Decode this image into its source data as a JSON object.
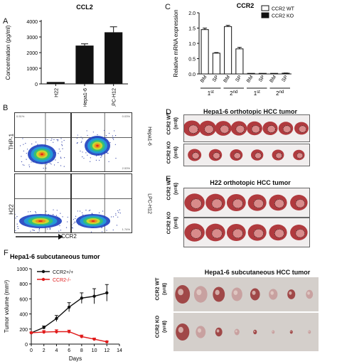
{
  "panel_labels": {
    "a": "A",
    "b": "B",
    "c": "C",
    "d": "D",
    "e": "E",
    "f": "F"
  },
  "colors": {
    "bar_black": "#111111",
    "line_black": "#111111",
    "line_red": "#e01b1b",
    "tissue": "#b03a3e",
    "tissue_light": "#d98a8a"
  },
  "chart_data": [
    {
      "panel": "A",
      "type": "bar",
      "title": "CCL2",
      "ylabel": "Concentration (pg/ml)",
      "ylim": [
        0,
        4000
      ],
      "yticks": [
        0,
        1000,
        2000,
        3000,
        4000
      ],
      "categories": [
        "H22",
        "Hepa1-6",
        "LPC-H12"
      ],
      "values": [
        120,
        2450,
        3300
      ],
      "errors": [
        0,
        110,
        350
      ],
      "grid": false
    },
    {
      "panel": "C",
      "type": "bar",
      "title": "CCR2",
      "ylabel": "Relative mRNA expression",
      "ylim": [
        0,
        2.0
      ],
      "yticks": [
        0.0,
        0.5,
        1.0,
        1.5,
        2.0
      ],
      "categories": [
        "BM",
        "SP",
        "BM",
        "SP",
        "BM",
        "SP",
        "BM",
        "SP"
      ],
      "groups": [
        {
          "label": "1st",
          "sup": "st",
          "base": "1"
        },
        {
          "label": "2nd",
          "sup": "nd",
          "base": "2"
        },
        {
          "label": "1st",
          "sup": "st",
          "base": "1"
        },
        {
          "label": "2nd",
          "sup": "nd",
          "base": "2"
        }
      ],
      "series": [
        {
          "name": "CCR2 WT",
          "fill": "#ffffff",
          "values": [
            1.45,
            0.68,
            1.55,
            0.82,
            null,
            null,
            null,
            null
          ],
          "errors": [
            0.05,
            0.02,
            0.04,
            0.05,
            0,
            0,
            0,
            0
          ]
        },
        {
          "name": "CCR2 KO",
          "fill": "#111111",
          "values": [
            null,
            null,
            null,
            null,
            0.0,
            0.0,
            0.0,
            0.02
          ],
          "errors": [
            0,
            0,
            0,
            0,
            0,
            0,
            0,
            0.01
          ]
        }
      ],
      "legend_position": "top-right",
      "grid": false
    },
    {
      "panel": "F",
      "type": "line",
      "title": "Hepa1-6 subcutaneous tumor",
      "xlabel": "Days",
      "ylabel": "Tumor volume (mm³)",
      "xlim": [
        0,
        14
      ],
      "ylim": [
        0,
        1000
      ],
      "xticks": [
        0,
        2,
        4,
        6,
        8,
        10,
        12,
        14
      ],
      "yticks": [
        0,
        200,
        400,
        600,
        800,
        1000
      ],
      "x": [
        0,
        2,
        4,
        6,
        8,
        10,
        12
      ],
      "series": [
        {
          "name": "CCR2+/+",
          "color": "#111111",
          "values": [
            150,
            220,
            340,
            490,
            610,
            635,
            680
          ],
          "errors": [
            10,
            20,
            40,
            60,
            70,
            100,
            110
          ]
        },
        {
          "name": "CCR2-/-",
          "color": "#e01b1b",
          "values": [
            150,
            160,
            165,
            165,
            100,
            65,
            30
          ],
          "errors": [
            10,
            20,
            25,
            20,
            20,
            15,
            10
          ]
        }
      ],
      "legend_position": "top-left",
      "grid": false
    }
  ],
  "flow": {
    "row_labels": [
      "THP-1",
      "H22"
    ],
    "col_labels": [
      "Hepa1-6",
      "LPC-H12"
    ],
    "x_axis_label": "CCR2",
    "quadrants": [
      {
        "tl": "0.51%",
        "tr": "0.03%",
        "bl": "",
        "br": ""
      },
      {
        "tl": "",
        "tr": "",
        "bl": "",
        "br": "2.53%"
      },
      {
        "tl": "",
        "tr": "",
        "bl": "",
        "br": ""
      },
      {
        "tl": "",
        "tr": "",
        "bl": "",
        "br": "1.74%"
      }
    ]
  },
  "panel_d": {
    "title": "Hepa1-6 orthotopic HCC tumor",
    "row1": "CCR2 WT",
    "row1_n": "(n=8)",
    "row2": "CCR2 KO",
    "row2_n": "(n=6)"
  },
  "panel_e": {
    "title": "H22 orthotopic HCC tumor",
    "row1": "CCR2 WT",
    "row1_n": "(n=6)",
    "row2": "CCR2 KO",
    "row2_n": "(n=6)"
  },
  "panel_f_photo": {
    "title": "Hepa1-6 subcutaneous HCC tumor",
    "row1": "CCR2 WT",
    "row1_n": "(n=8)",
    "row2": "CCR2 KO",
    "row2_n": "(n=8)"
  }
}
